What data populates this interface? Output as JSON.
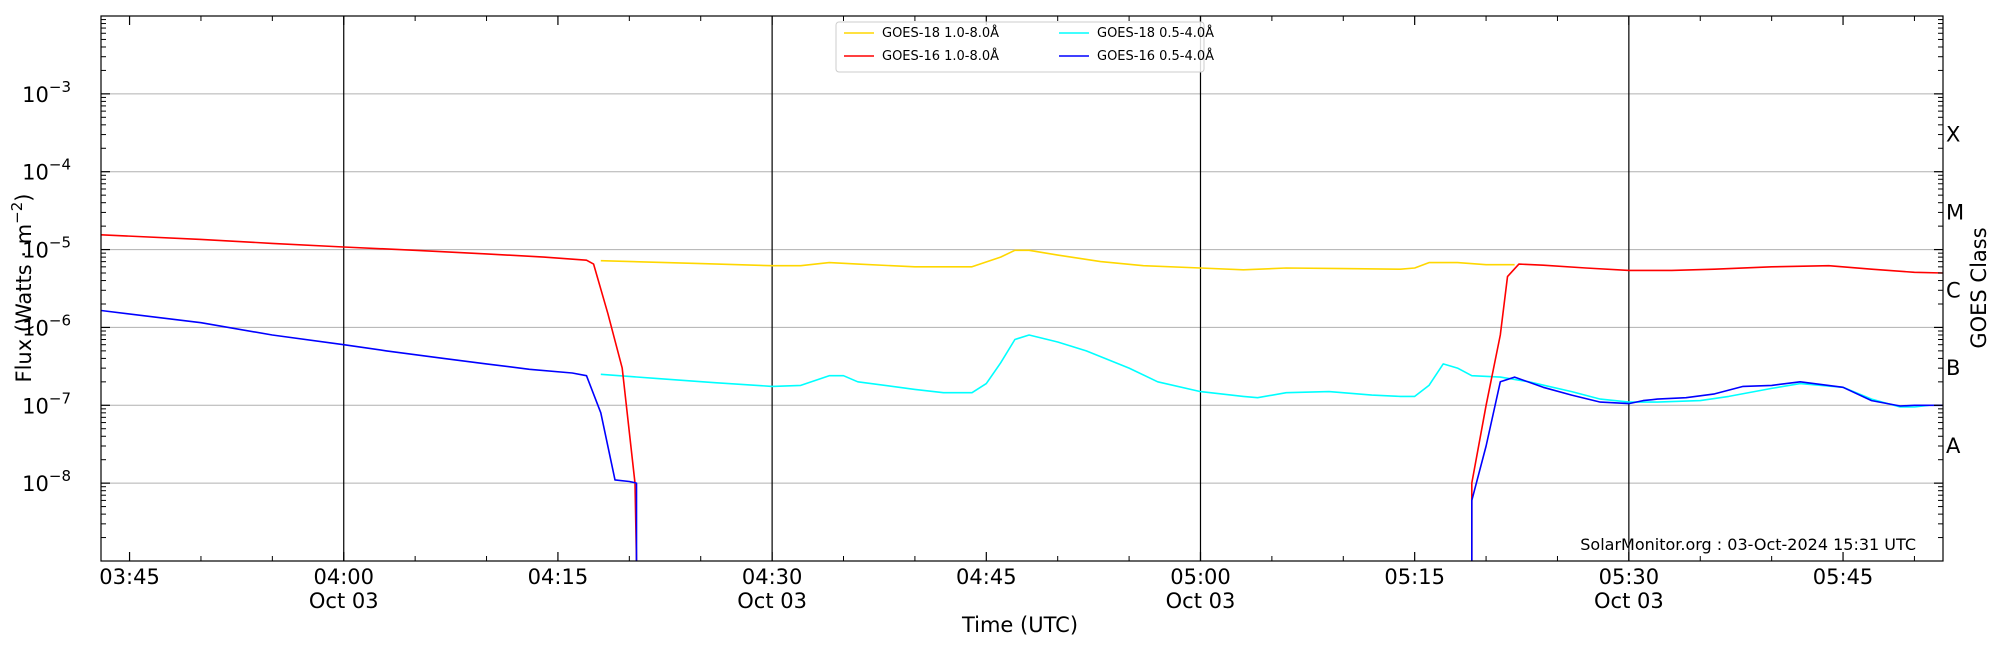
{
  "chart_data": {
    "type": "line",
    "title": "",
    "xlabel": "Time (UTC)",
    "ylabel": "Flux (Watts · m",
    "ylabel_exponent": "−2",
    "ylabel_close": ")",
    "y2label": "GOES Class",
    "yscale": "log",
    "ylim": [
      1e-09,
      0.01
    ],
    "xlim": [
      "03:43",
      "05:52"
    ],
    "grid": "horizontal",
    "legend_position": "top-center",
    "y_ticks": [
      {
        "value": 1e-08,
        "mantissa": "10",
        "exponent": "−8"
      },
      {
        "value": 1e-07,
        "mantissa": "10",
        "exponent": "−7"
      },
      {
        "value": 1e-06,
        "mantissa": "10",
        "exponent": "−6"
      },
      {
        "value": 1e-05,
        "mantissa": "10",
        "exponent": "−5"
      },
      {
        "value": 0.0001,
        "mantissa": "10",
        "exponent": "−4"
      },
      {
        "value": 0.001,
        "mantissa": "10",
        "exponent": "−3"
      }
    ],
    "x_ticks": [
      {
        "time": "03:45",
        "label": "03:45",
        "sub": ""
      },
      {
        "time": "04:00",
        "label": "04:00",
        "sub": "Oct 03"
      },
      {
        "time": "04:15",
        "label": "04:15",
        "sub": ""
      },
      {
        "time": "04:30",
        "label": "04:30",
        "sub": "Oct 03"
      },
      {
        "time": "04:45",
        "label": "04:45",
        "sub": ""
      },
      {
        "time": "05:00",
        "label": "05:00",
        "sub": "Oct 03"
      },
      {
        "time": "05:15",
        "label": "05:15",
        "sub": ""
      },
      {
        "time": "05:30",
        "label": "05:30",
        "sub": "Oct 03"
      },
      {
        "time": "05:45",
        "label": "05:45",
        "sub": ""
      }
    ],
    "vlines": [
      "04:00",
      "04:30",
      "05:00",
      "05:30"
    ],
    "goes_classes": [
      {
        "label": "A",
        "value": 3e-08
      },
      {
        "label": "B",
        "value": 3e-07
      },
      {
        "label": "C",
        "value": 3e-06
      },
      {
        "label": "M",
        "value": 3e-05
      },
      {
        "label": "X",
        "value": 0.0003
      }
    ],
    "series": [
      {
        "name": "GOES-18 1.0-8.0Å",
        "color": "#ffd700",
        "points": [
          [
            "04:18",
            7.2e-06
          ],
          [
            "04:25",
            6.6e-06
          ],
          [
            "04:30",
            6.2e-06
          ],
          [
            "04:32",
            6.2e-06
          ],
          [
            "04:34",
            6.8e-06
          ],
          [
            "04:36",
            6.5e-06
          ],
          [
            "04:40",
            6e-06
          ],
          [
            "04:44",
            6e-06
          ],
          [
            "04:46",
            8e-06
          ],
          [
            "04:47",
            9.8e-06
          ],
          [
            "04:48",
            9.8e-06
          ],
          [
            "04:50",
            8.5e-06
          ],
          [
            "04:53",
            7e-06
          ],
          [
            "04:56",
            6.2e-06
          ],
          [
            "05:00",
            5.8e-06
          ],
          [
            "05:03",
            5.5e-06
          ],
          [
            "05:06",
            5.8e-06
          ],
          [
            "05:10",
            5.7e-06
          ],
          [
            "05:14",
            5.6e-06
          ],
          [
            "05:15",
            5.8e-06
          ],
          [
            "05:16",
            6.8e-06
          ],
          [
            "05:18",
            6.8e-06
          ],
          [
            "05:20",
            6.4e-06
          ],
          [
            "05:22",
            6.4e-06
          ]
        ]
      },
      {
        "name": "GOES-18 0.5-4.0Å",
        "color": "#00ffff",
        "points": [
          [
            "04:18",
            2.5e-07
          ],
          [
            "04:22",
            2.2e-07
          ],
          [
            "04:26",
            1.95e-07
          ],
          [
            "04:30",
            1.75e-07
          ],
          [
            "04:32",
            1.8e-07
          ],
          [
            "04:34",
            2.4e-07
          ],
          [
            "04:35",
            2.4e-07
          ],
          [
            "04:36",
            2e-07
          ],
          [
            "04:40",
            1.6e-07
          ],
          [
            "04:42",
            1.45e-07
          ],
          [
            "04:44",
            1.45e-07
          ],
          [
            "04:45",
            1.9e-07
          ],
          [
            "04:46",
            3.5e-07
          ],
          [
            "04:47",
            7e-07
          ],
          [
            "04:48",
            8e-07
          ],
          [
            "04:50",
            6.5e-07
          ],
          [
            "04:52",
            5e-07
          ],
          [
            "04:55",
            3e-07
          ],
          [
            "04:57",
            2e-07
          ],
          [
            "05:00",
            1.5e-07
          ],
          [
            "05:03",
            1.3e-07
          ],
          [
            "05:04",
            1.25e-07
          ],
          [
            "05:06",
            1.45e-07
          ],
          [
            "05:09",
            1.5e-07
          ],
          [
            "05:12",
            1.35e-07
          ],
          [
            "05:14",
            1.3e-07
          ],
          [
            "05:15",
            1.3e-07
          ],
          [
            "05:16",
            1.8e-07
          ],
          [
            "05:17",
            3.4e-07
          ],
          [
            "05:18",
            3e-07
          ],
          [
            "05:19",
            2.4e-07
          ],
          [
            "05:21",
            2.3e-07
          ],
          [
            "05:23",
            2e-07
          ],
          [
            "05:26",
            1.5e-07
          ],
          [
            "05:28",
            1.2e-07
          ],
          [
            "05:30",
            1.1e-07
          ],
          [
            "05:32",
            1.1e-07
          ],
          [
            "05:35",
            1.15e-07
          ],
          [
            "05:37",
            1.3e-07
          ],
          [
            "05:40",
            1.65e-07
          ],
          [
            "05:42",
            1.9e-07
          ],
          [
            "05:45",
            1.7e-07
          ],
          [
            "05:47",
            1.2e-07
          ],
          [
            "05:49",
            9.5e-08
          ],
          [
            "05:50",
            9.5e-08
          ],
          [
            "05:51",
            1e-07
          ]
        ]
      },
      {
        "name": "GOES-16 1.0-8.0Å",
        "color": "#ff0000",
        "points": [
          [
            "03:43",
            1.55e-05
          ],
          [
            "03:50",
            1.35e-05
          ],
          [
            "03:55",
            1.2e-05
          ],
          [
            "04:00",
            1.08e-05
          ],
          [
            "04:05",
            9.8e-06
          ],
          [
            "04:10",
            8.8e-06
          ],
          [
            "04:14",
            8e-06
          ],
          [
            "04:17",
            7.3e-06
          ],
          [
            "04:17.5",
            6.5e-06
          ],
          [
            "04:18.5",
            1.5e-06
          ],
          [
            "04:19.5",
            3e-07
          ],
          [
            "04:20.4",
            1e-08
          ],
          [
            "04:20.5",
            1e-09
          ],
          null,
          [
            "05:19",
            1e-09
          ],
          [
            "05:19",
            1e-08
          ],
          [
            "05:20",
            1e-07
          ],
          [
            "05:21",
            8e-07
          ],
          [
            "05:21.5",
            4.5e-06
          ],
          [
            "05:22.3",
            6.5e-06
          ],
          [
            "05:24",
            6.3e-06
          ],
          [
            "05:27",
            5.8e-06
          ],
          [
            "05:30",
            5.4e-06
          ],
          [
            "05:33",
            5.4e-06
          ],
          [
            "05:36",
            5.6e-06
          ],
          [
            "05:40",
            6e-06
          ],
          [
            "05:44",
            6.2e-06
          ],
          [
            "05:47",
            5.6e-06
          ],
          [
            "05:50",
            5.1e-06
          ],
          [
            "05:52",
            5e-06
          ]
        ]
      },
      {
        "name": "GOES-16 0.5-4.0Å",
        "color": "#0000ff",
        "points": [
          [
            "03:43",
            1.65e-06
          ],
          [
            "03:50",
            1.15e-06
          ],
          [
            "03:55",
            8e-07
          ],
          [
            "04:00",
            6e-07
          ],
          [
            "04:03",
            5e-07
          ],
          [
            "04:07",
            4e-07
          ],
          [
            "04:10",
            3.4e-07
          ],
          [
            "04:13",
            2.9e-07
          ],
          [
            "04:16",
            2.6e-07
          ],
          [
            "04:17",
            2.4e-07
          ],
          [
            "04:18",
            8e-08
          ],
          [
            "04:19",
            1.1e-08
          ],
          [
            "04:20",
            1.05e-08
          ],
          [
            "04:20.5",
            1e-08
          ],
          [
            "04:20.5",
            1e-09
          ],
          null,
          [
            "05:19",
            1e-09
          ],
          [
            "05:19",
            6e-09
          ],
          [
            "05:20",
            3e-08
          ],
          [
            "05:21",
            2e-07
          ],
          [
            "05:22",
            2.3e-07
          ],
          [
            "05:24",
            1.7e-07
          ],
          [
            "05:26",
            1.35e-07
          ],
          [
            "05:28",
            1.1e-07
          ],
          [
            "05:30",
            1.05e-07
          ],
          [
            "05:31",
            1.15e-07
          ],
          [
            "05:32",
            1.2e-07
          ],
          [
            "05:34",
            1.25e-07
          ],
          [
            "05:36",
            1.4e-07
          ],
          [
            "05:38",
            1.75e-07
          ],
          [
            "05:40",
            1.8e-07
          ],
          [
            "05:42",
            2e-07
          ],
          [
            "05:45",
            1.7e-07
          ],
          [
            "05:47",
            1.15e-07
          ],
          [
            "05:49",
            9.8e-08
          ],
          [
            "05:50",
            1e-07
          ],
          [
            "05:52",
            1e-07
          ]
        ]
      }
    ],
    "watermark": "SolarMonitor.org : 03-Oct-2024 15:31 UTC"
  }
}
